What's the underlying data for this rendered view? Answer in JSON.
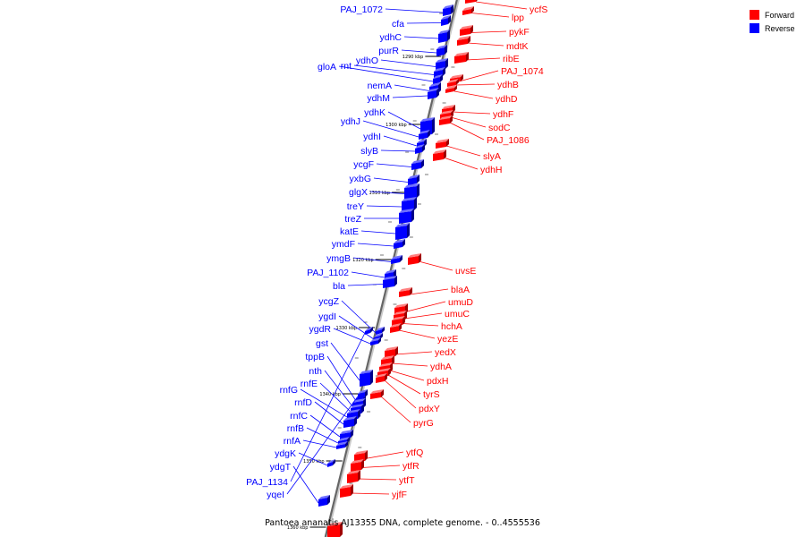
{
  "caption": "Pantoea ananatis AJ13355 DNA, complete genome. - 0..4555536",
  "legend": [
    {
      "label": "Forward",
      "color": "#ff0000"
    },
    {
      "label": "Reverse",
      "color": "#0000ff"
    }
  ],
  "colors": {
    "forward": "#ff0000",
    "reverse": "#0000ff",
    "axis": "#666666"
  },
  "ticks": [
    "1290 kbp",
    "1300 kbp",
    "1310 kbp",
    "1320 kbp",
    "1330 kbp",
    "1340 kbp",
    "1350 kbp",
    "1360 kbp"
  ],
  "reverse_genes": [
    "PAJ_1072",
    "cfa",
    "ydhC",
    "purR",
    "ydhO",
    "rnt",
    "gloA",
    "nemA",
    "ydhM",
    "ydhK",
    "ydhJ",
    "ydhI",
    "slyB",
    "ycgF",
    "yxbG",
    "glgX",
    "treY",
    "treZ",
    "katE",
    "ymdF",
    "ymgB",
    "PAJ_1102",
    "bla",
    "ycgZ",
    "ygdI",
    "ygdR",
    "gst",
    "tppB",
    "nth",
    "rnfE",
    "rnfG",
    "rnfD",
    "rnfC",
    "rnfB",
    "rnfA",
    "ydgK",
    "ydgT",
    "PAJ_1134",
    "yqeI"
  ],
  "forward_genes": [
    "ycfS",
    "lpp",
    "pykF",
    "mdtK",
    "ribE",
    "PAJ_1074",
    "ydhB",
    "ydhD",
    "ydhF",
    "sodC",
    "PAJ_1086",
    "slyA",
    "ydhH",
    "uvsE",
    "blaA",
    "umuD",
    "umuC",
    "hchA",
    "yezE",
    "yedX",
    "ydhA",
    "pdxH",
    "tyrS",
    "pdxY",
    "pyrG",
    "ytfQ",
    "ytfR",
    "ytfT",
    "yjfF"
  ]
}
